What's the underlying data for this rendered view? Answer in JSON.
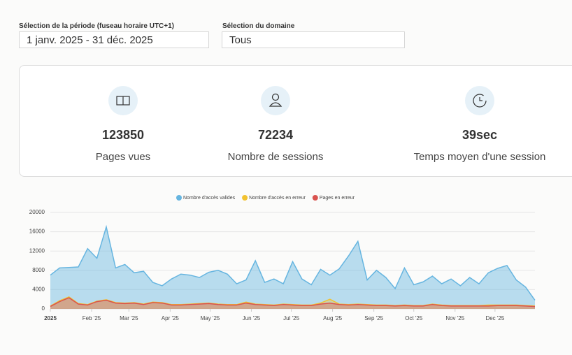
{
  "filters": {
    "period_label": "Sélection de la période (fuseau horaire UTC+1)",
    "period_value": "1 janv. 2025 - 31 déc. 2025",
    "domain_label": "Sélection du domaine",
    "domain_value": "Tous"
  },
  "stats": [
    {
      "value": 123850,
      "label": "Pages vues"
    },
    {
      "value": 72234,
      "label": "Nombre de sessions"
    },
    {
      "value": "39sec",
      "label": "Temps moyen d'une session"
    }
  ],
  "chart_data": {
    "type": "area",
    "x": [
      0,
      7,
      14,
      21,
      28,
      35,
      42,
      49,
      56,
      63,
      70,
      77,
      84,
      91,
      98,
      105,
      112,
      119,
      126,
      133,
      140,
      147,
      154,
      161,
      168,
      175,
      182,
      189,
      196,
      203,
      210,
      217,
      224,
      231,
      238,
      245,
      252,
      259,
      266,
      273,
      280,
      287,
      294,
      301,
      308,
      315,
      322,
      329,
      336,
      343,
      350,
      357,
      364
    ],
    "xlim": [
      0,
      364
    ],
    "xticks": [
      {
        "value": 0,
        "label": "2025"
      },
      {
        "value": 31,
        "label": "Feb '25"
      },
      {
        "value": 59,
        "label": "Mar '25"
      },
      {
        "value": 90,
        "label": "Apr '25"
      },
      {
        "value": 120,
        "label": "May '25"
      },
      {
        "value": 151,
        "label": "Jun '25"
      },
      {
        "value": 181,
        "label": "Jul '25"
      },
      {
        "value": 212,
        "label": "Aug '25"
      },
      {
        "value": 243,
        "label": "Sep '25"
      },
      {
        "value": 273,
        "label": "Oct '25"
      },
      {
        "value": 304,
        "label": "Nov '25"
      },
      {
        "value": 334,
        "label": "Dec '25"
      }
    ],
    "ylim": [
      0,
      20000
    ],
    "yticks": [
      0,
      4000,
      8000,
      12000,
      16000,
      20000
    ],
    "grid": true,
    "legend": "top",
    "series": [
      {
        "name": "Nombre d'accès valides",
        "color": "#66b5e0",
        "values": [
          7000,
          8500,
          8600,
          8700,
          12500,
          10500,
          17000,
          8500,
          9200,
          7500,
          7800,
          5500,
          4800,
          6200,
          7200,
          7000,
          6500,
          7600,
          8000,
          7200,
          5200,
          6000,
          10000,
          5500,
          6200,
          5200,
          9800,
          6200,
          5000,
          8200,
          7000,
          8300,
          11000,
          14000,
          6000,
          8000,
          6500,
          4200,
          8500,
          5000,
          5600,
          6800,
          5200,
          6200,
          4800,
          6500,
          5200,
          7500,
          8400,
          9000,
          6000,
          4500,
          1800
        ]
      },
      {
        "name": "Nombre d'accès en erreur",
        "color": "#f2c230",
        "values": [
          600,
          1700,
          2500,
          1100,
          900,
          1600,
          1900,
          1300,
          1200,
          1300,
          1000,
          1400,
          1300,
          900,
          900,
          1000,
          1100,
          1200,
          1000,
          900,
          900,
          1400,
          1000,
          900,
          800,
          1000,
          900,
          800,
          800,
          1200,
          2000,
          1000,
          900,
          1000,
          900,
          800,
          800,
          700,
          800,
          700,
          700,
          1000,
          800,
          700,
          700,
          700,
          700,
          800,
          800,
          800,
          800,
          700,
          600
        ]
      },
      {
        "name": "Pages en erreur",
        "color": "#d9534f",
        "values": [
          500,
          1500,
          2300,
          1000,
          800,
          1500,
          1800,
          1200,
          1100,
          1200,
          900,
          1300,
          1200,
          800,
          800,
          900,
          1000,
          1100,
          900,
          800,
          800,
          1200,
          900,
          800,
          700,
          900,
          800,
          700,
          700,
          1000,
          1200,
          900,
          800,
          900,
          800,
          700,
          700,
          600,
          700,
          600,
          600,
          900,
          700,
          600,
          600,
          600,
          600,
          600,
          700,
          700,
          700,
          600,
          500
        ]
      }
    ]
  }
}
